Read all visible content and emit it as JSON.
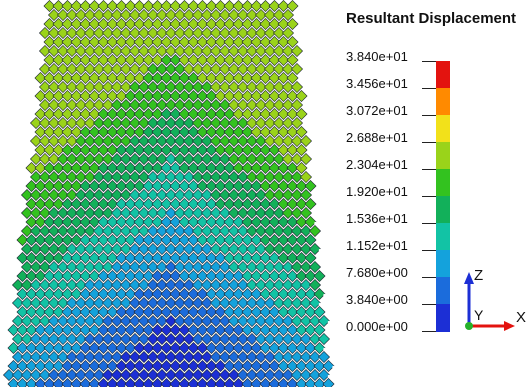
{
  "legend": {
    "title": "Resultant Displacement",
    "values": [
      "3.840e+01",
      "3.456e+01",
      "3.072e+01",
      "2.688e+01",
      "2.304e+01",
      "1.920e+01",
      "1.536e+01",
      "1.152e+01",
      "7.680e+00",
      "3.840e+00",
      "0.000e+00"
    ],
    "colors": [
      "#e3130f",
      "#ff8a00",
      "#f2e11a",
      "#9ad31a",
      "#33c21f",
      "#12b05a",
      "#12c3a5",
      "#14a2dc",
      "#1b6cdc",
      "#1c2fd5"
    ]
  },
  "axes": {
    "z_label": "Z",
    "y_label": "Y",
    "x_label": "X",
    "z_color": "#1c2fd5",
    "y_color": "#27b02a",
    "x_color": "#e3130f"
  }
}
